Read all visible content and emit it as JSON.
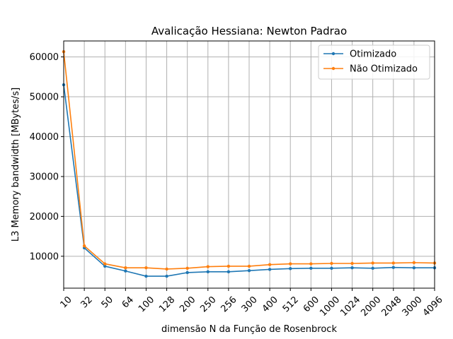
{
  "chart_data": {
    "type": "line",
    "title": "Avalicação Hessiana:  Newton Padrao",
    "xlabel": "dimensão N da Função de Rosenbrock",
    "ylabel": "L3 Memory bandwidth [MBytes/s]",
    "categories": [
      "10",
      "32",
      "50",
      "64",
      "100",
      "128",
      "200",
      "250",
      "256",
      "300",
      "400",
      "512",
      "600",
      "1000",
      "1024",
      "2000",
      "2048",
      "3000",
      "4096"
    ],
    "ylim": [
      2000,
      64000
    ],
    "yticks": [
      10000,
      20000,
      30000,
      40000,
      50000,
      60000
    ],
    "ytick_labels": [
      "10000",
      "20000",
      "30000",
      "40000",
      "50000",
      "60000"
    ],
    "grid": true,
    "legend_position": "top-right",
    "series": [
      {
        "name": "Otimizado",
        "color": "#1f77b4",
        "values": [
          53000,
          12100,
          7500,
          6300,
          5000,
          5000,
          5900,
          6100,
          6100,
          6400,
          6700,
          6900,
          7000,
          7000,
          7100,
          7000,
          7200,
          7100,
          7100
        ]
      },
      {
        "name": " Não Otimizado",
        "color": "#ff7f0e",
        "values": [
          61300,
          12600,
          8100,
          7100,
          7100,
          6800,
          7000,
          7400,
          7500,
          7500,
          7900,
          8100,
          8100,
          8200,
          8200,
          8300,
          8300,
          8400,
          8300
        ]
      }
    ]
  }
}
